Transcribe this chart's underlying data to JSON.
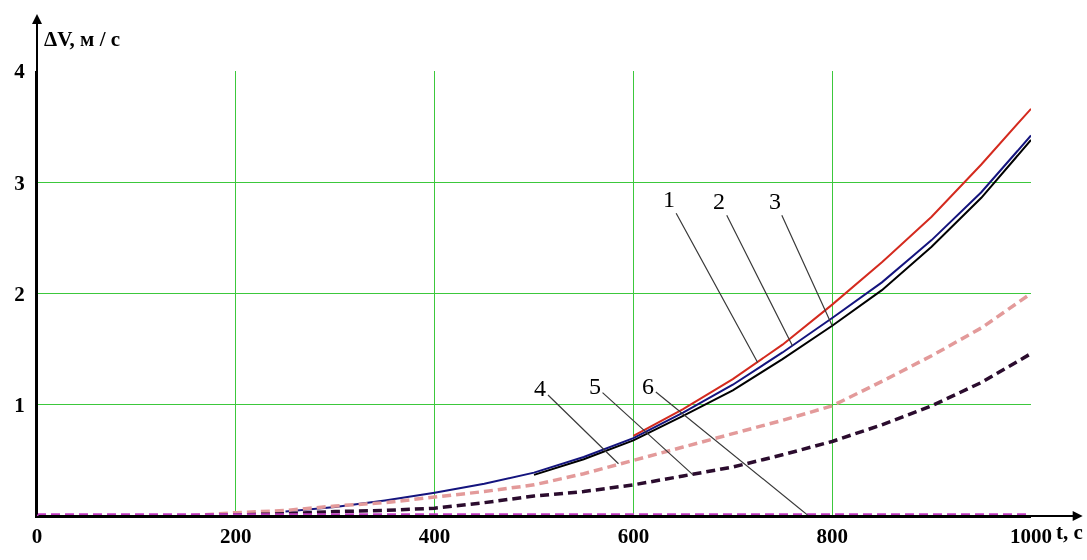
{
  "chart_data": {
    "type": "line",
    "xlabel": "t, с",
    "ylabel": "ΔV, м / с",
    "x": [
      0,
      100,
      150,
      200,
      250,
      300,
      350,
      400,
      450,
      500,
      550,
      600,
      650,
      700,
      750,
      800,
      850,
      900,
      950,
      1000
    ],
    "series": [
      {
        "color": "#d42a1e",
        "line_style": "solid",
        "x": [
          600,
          650,
          700,
          750,
          800,
          850,
          900,
          950,
          1000
        ],
        "values": [
          0.72,
          0.96,
          1.23,
          1.54,
          1.9,
          2.28,
          2.69,
          3.16,
          3.66
        ]
      },
      {
        "color": "#000000",
        "line_style": "solid",
        "x": [
          500,
          550,
          600,
          650,
          700,
          750,
          800,
          850,
          900,
          950,
          1000
        ],
        "values": [
          0.37,
          0.51,
          0.68,
          0.9,
          1.13,
          1.41,
          1.71,
          2.03,
          2.42,
          2.86,
          3.38
        ]
      },
      {
        "color": "#14147e",
        "line_style": "solid",
        "x": [
          250,
          300,
          350,
          400,
          450,
          500,
          550,
          600,
          650,
          700,
          750,
          800,
          850,
          900,
          950,
          1000
        ],
        "values": [
          0.04,
          0.08,
          0.14,
          0.21,
          0.29,
          0.39,
          0.53,
          0.7,
          0.93,
          1.18,
          1.47,
          1.78,
          2.1,
          2.48,
          2.91,
          3.42
        ]
      },
      {
        "color": "#e39a9a",
        "line_style": "dashed",
        "values": [
          0,
          0,
          0,
          0.03,
          0.05,
          0.09,
          0.12,
          0.17,
          0.22,
          0.28,
          0.38,
          0.5,
          0.62,
          0.74,
          0.86,
          0.99,
          1.21,
          1.44,
          1.69,
          2.0
        ]
      },
      {
        "color": "#2b0c2e",
        "line_style": "dashed",
        "values": [
          0,
          0,
          0,
          0.01,
          0.02,
          0.04,
          0.05,
          0.07,
          0.12,
          0.18,
          0.22,
          0.28,
          0.36,
          0.44,
          0.55,
          0.67,
          0.82,
          0.99,
          1.2,
          1.46
        ]
      },
      {
        "color": "#c23cc2",
        "line_style": "dashed",
        "x": [
          0,
          200,
          400,
          600,
          800,
          1000
        ],
        "values": [
          0.01,
          0.01,
          0.01,
          0.01,
          0.01,
          0.01
        ]
      }
    ],
    "xlim": [
      0,
      1000
    ],
    "ylim": [
      0,
      4
    ],
    "xticks": [
      0,
      200,
      400,
      600,
      800,
      1000
    ],
    "yticks": [
      1,
      2,
      3,
      4
    ],
    "grid": true,
    "annotations": [
      {
        "text": "1",
        "x": 725,
        "y": 1.38
      },
      {
        "text": "2",
        "x": 760,
        "y": 1.53
      },
      {
        "text": "3",
        "x": 800,
        "y": 1.71
      },
      {
        "text": "4",
        "x": 585,
        "y": 0.47
      },
      {
        "text": "5",
        "x": 660,
        "y": 0.37
      },
      {
        "text": "6",
        "x": 775,
        "y": 0.01
      }
    ]
  }
}
